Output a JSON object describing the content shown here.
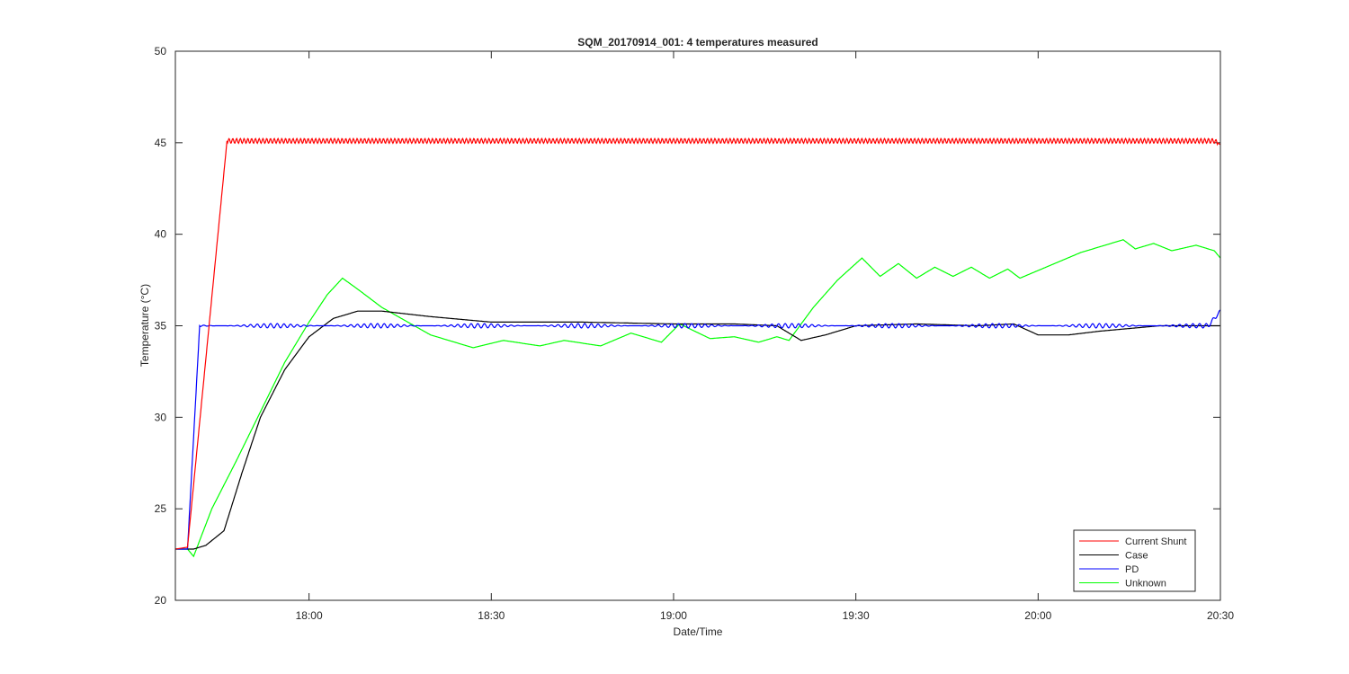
{
  "chart_data": {
    "type": "line",
    "title": "SQM_20170914_001: 4 temperatures measured",
    "xlabel": "Date/Time",
    "ylabel": "Temperature (°C)",
    "xlim": [
      "17:38",
      "20:30"
    ],
    "ylim": [
      20,
      50
    ],
    "xticks": [
      "18:00",
      "18:30",
      "19:00",
      "19:30",
      "20:00",
      "20:30"
    ],
    "yticks": [
      20,
      25,
      30,
      35,
      40,
      45,
      50
    ],
    "grid": false,
    "legend": "bottom-right",
    "series": [
      {
        "name": "Current Shunt",
        "color": "#ff0000",
        "x": [
          "17:38",
          "17:40",
          "17:46.5",
          "18:30",
          "19:00",
          "19:30",
          "20:00",
          "20:29",
          "20:30"
        ],
        "y": [
          22.8,
          22.9,
          45.1,
          45.1,
          45.1,
          45.1,
          45.1,
          45.1,
          44.9
        ]
      },
      {
        "name": "Case",
        "color": "#000000",
        "x": [
          "17:38",
          "17:41",
          "17:43",
          "17:46",
          "17:49",
          "17:52",
          "17:56",
          "18:00",
          "18:04",
          "18:08",
          "18:12",
          "18:20",
          "18:30",
          "18:45",
          "19:00",
          "19:10",
          "19:17",
          "19:19",
          "19:21",
          "19:25",
          "19:30",
          "19:40",
          "19:50",
          "19:56",
          "20:00",
          "20:05",
          "20:10",
          "20:20",
          "20:30"
        ],
        "y": [
          22.8,
          22.8,
          23.0,
          23.8,
          27.0,
          30.0,
          32.6,
          34.4,
          35.4,
          35.8,
          35.8,
          35.5,
          35.2,
          35.2,
          35.1,
          35.1,
          35.0,
          34.6,
          34.2,
          34.5,
          35.0,
          35.1,
          35.0,
          35.1,
          34.5,
          34.5,
          34.7,
          35.0,
          35.0
        ]
      },
      {
        "name": "PD",
        "color": "#0000ff",
        "x": [
          "17:38",
          "17:40",
          "17:42",
          "18:00",
          "18:30",
          "19:00",
          "19:30",
          "20:00",
          "20:28",
          "20:30"
        ],
        "y": [
          22.8,
          22.8,
          35.0,
          35.0,
          35.0,
          35.0,
          35.0,
          35.0,
          35.0,
          35.8
        ]
      },
      {
        "name": "Unknown",
        "color": "#00ff00",
        "x": [
          "17:38",
          "17:40",
          "17:41",
          "17:44",
          "17:48",
          "17:52",
          "17:56",
          "18:00",
          "18:03",
          "18:05.5",
          "18:08",
          "18:12",
          "18:20",
          "18:27",
          "18:32",
          "18:38",
          "18:42",
          "18:48",
          "18:53",
          "18:58",
          "19:01",
          "19:06",
          "19:10",
          "19:14",
          "19:17",
          "19:19",
          "19:23",
          "19:27",
          "19:31",
          "19:34",
          "19:37",
          "19:40",
          "19:43",
          "19:46",
          "19:49",
          "19:52",
          "19:55",
          "19:57",
          "20:02",
          "20:07",
          "20:12",
          "20:14",
          "20:16",
          "20:19",
          "20:22",
          "20:26",
          "20:29",
          "20:30"
        ],
        "y": [
          22.8,
          22.8,
          22.4,
          25.0,
          27.6,
          30.3,
          33.0,
          35.2,
          36.7,
          37.6,
          37.0,
          36.0,
          34.5,
          33.8,
          34.2,
          33.9,
          34.2,
          33.9,
          34.6,
          34.1,
          35.1,
          34.3,
          34.4,
          34.1,
          34.4,
          34.2,
          36.0,
          37.5,
          38.7,
          37.7,
          38.4,
          37.6,
          38.2,
          37.7,
          38.2,
          37.6,
          38.1,
          37.6,
          38.3,
          39.0,
          39.5,
          39.7,
          39.2,
          39.5,
          39.1,
          39.4,
          39.1,
          38.7
        ]
      }
    ]
  }
}
